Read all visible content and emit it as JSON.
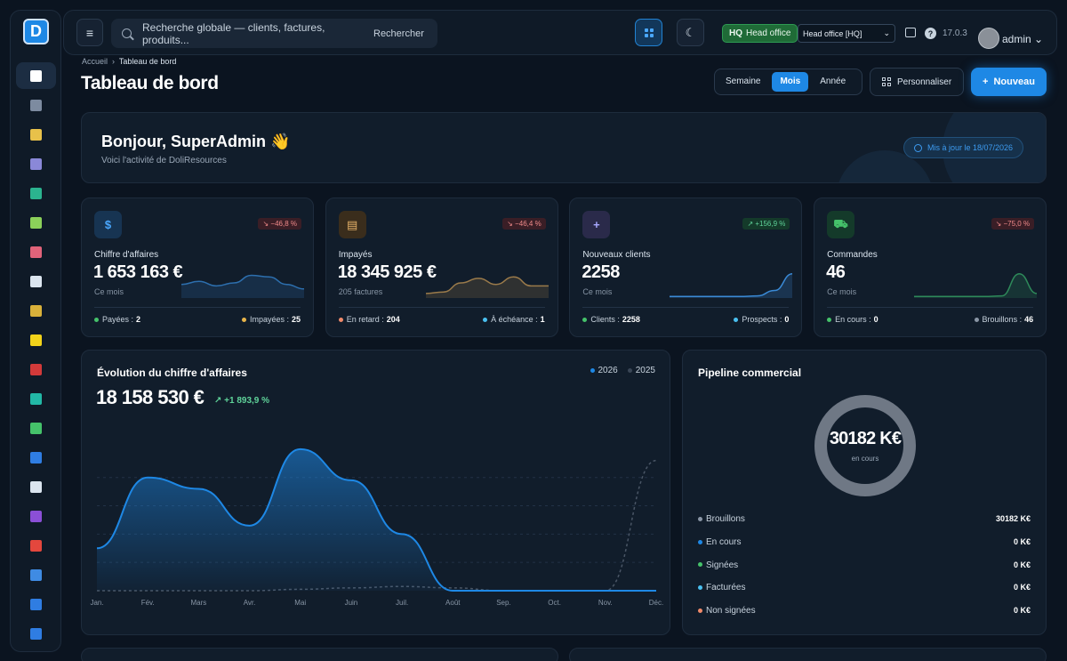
{
  "sidebar": {
    "items": [
      {
        "icon": "home-icon",
        "color": "#ffffff",
        "active": true
      },
      {
        "icon": "building-icon",
        "color": "#7d8ba0"
      },
      {
        "icon": "box-icon",
        "color": "#e8c14a"
      },
      {
        "icon": "flow-icon",
        "color": "#8a88d8"
      },
      {
        "icon": "briefcase-icon",
        "color": "#2bb38f"
      },
      {
        "icon": "invoice-icon",
        "color": "#8bd05a"
      },
      {
        "icon": "calendar-icon",
        "color": "#e0637a"
      },
      {
        "icon": "tools-icon",
        "color": "#dbe5ef"
      },
      {
        "icon": "coin-icon",
        "color": "#d9b13a"
      },
      {
        "icon": "bolt-icon",
        "color": "#f2d31a"
      },
      {
        "icon": "chart-icon",
        "color": "#d23a3a"
      },
      {
        "icon": "shield-icon",
        "color": "#22b8a6"
      },
      {
        "icon": "plus-icon",
        "color": "#45c26a"
      },
      {
        "icon": "triangle-icon",
        "color": "#2f7de2"
      },
      {
        "icon": "bow-icon",
        "color": "#dbe5ef"
      },
      {
        "icon": "screen-icon",
        "color": "#8b4fd6"
      },
      {
        "icon": "list-icon",
        "color": "#e4473d"
      },
      {
        "icon": "chat-icon",
        "color": "#3f8be3"
      },
      {
        "icon": "triangle-icon",
        "color": "#2f7de2"
      },
      {
        "icon": "disc-icon",
        "color": "#2f7de2"
      }
    ]
  },
  "topbar": {
    "menu_icon": "≡",
    "search_placeholder": "Recherche globale — clients, factures, produits...",
    "search_button": "Rechercher",
    "hq_short": "HQ",
    "hq_label": "Head office",
    "entity": "Head office [HQ]",
    "help": "?",
    "version": "17.0.3",
    "user": "admin"
  },
  "breadcrumb": {
    "home": "Accueil",
    "sep": "›",
    "current": "Tableau de bord"
  },
  "page_title": "Tableau de bord",
  "period": {
    "week": "Semaine",
    "month": "Mois",
    "year": "Année"
  },
  "customize_label": "Personnaliser",
  "new_label": "Nouveau",
  "welcome": {
    "hello": "Bonjour, SuperAdmin 👋",
    "sub": "Voici l'activité de DoliResources",
    "updated": "Mis à jour le 18/07/2026"
  },
  "kpis": [
    {
      "label": "Chiffre d'affaires",
      "value": "1 653 163 €",
      "caption": "Ce mois",
      "change": "↘ −46,8 %",
      "trend": "down",
      "icon": "$",
      "icon_name": "dollar-icon",
      "icon_bg": "#173452",
      "icon_color": "#4aa8ff",
      "spark_color": "#2d6fae",
      "spark": [
        0.55,
        0.45,
        0.6,
        0.5,
        0.25,
        0.3,
        0.55,
        0.7
      ],
      "foot_left_label": "Payées :",
      "foot_left_value": "2",
      "foot_left_dot": "#45c26a",
      "foot_right_label": "Impayées :",
      "foot_right_value": "25",
      "foot_right_dot": "#e8b44a"
    },
    {
      "label": "Impayés",
      "value": "18 345 925 €",
      "caption": "205 factures",
      "change": "↘ −46,4 %",
      "trend": "down",
      "icon": "▤",
      "icon_name": "document-icon",
      "icon_bg": "#3a2d1c",
      "icon_color": "#e8b46a",
      "spark_color": "#9a7a4a",
      "spark": [
        0.85,
        0.8,
        0.5,
        0.35,
        0.55,
        0.3,
        0.6,
        0.6
      ],
      "foot_left_label": "En retard :",
      "foot_left_value": "204",
      "foot_left_dot": "#f08a6a",
      "foot_right_label": "À échéance :",
      "foot_right_value": "1",
      "foot_right_dot": "#4ac0f0"
    },
    {
      "label": "Nouveaux clients",
      "value": "2258",
      "caption": "Ce mois",
      "change": "↗ +156,9 %",
      "trend": "up",
      "icon": "+",
      "icon_name": "user-plus-icon",
      "icon_bg": "#2a2a4a",
      "icon_color": "#a8a8ff",
      "spark_color": "#3a8ad6",
      "spark": [
        0.95,
        0.95,
        0.95,
        0.95,
        0.95,
        0.93,
        0.75,
        0.2
      ],
      "foot_left_label": "Clients :",
      "foot_left_value": "2258",
      "foot_left_dot": "#45c26a",
      "foot_right_label": "Prospects :",
      "foot_right_value": "0",
      "foot_right_dot": "#4ac0f0"
    },
    {
      "label": "Commandes",
      "value": "46",
      "caption": "Ce mois",
      "change": "↘ −75,0 %",
      "trend": "down",
      "icon": "⛟",
      "icon_name": "cart-icon",
      "icon_bg": "#143a2a",
      "icon_color": "#45c26a",
      "spark_color": "#2e8a5a",
      "spark": [
        0.95,
        0.95,
        0.95,
        0.95,
        0.95,
        0.93,
        0.2,
        0.85
      ],
      "foot_left_label": "En cours :",
      "foot_left_value": "0",
      "foot_left_dot": "#45c26a",
      "foot_right_label": "Brouillons :",
      "foot_right_value": "46",
      "foot_right_dot": "#8a96a6"
    }
  ],
  "revenue": {
    "title": "Évolution du chiffre d'affaires",
    "total": "18 158 530 €",
    "growth": "↗ +1 893,9 %",
    "legend": [
      {
        "name": "2026",
        "color": "#1e88e5"
      },
      {
        "name": "2025",
        "color": "#3a4656"
      }
    ]
  },
  "chart_data": {
    "type": "area",
    "categories": [
      "Jan.",
      "Fév.",
      "Mars",
      "Avr.",
      "Mai",
      "Juin",
      "Juil.",
      "Août",
      "Sep.",
      "Oct.",
      "Nov.",
      "Déc."
    ],
    "series": [
      {
        "name": "2026",
        "values": [
          1.5,
          4.0,
          3.6,
          2.3,
          5.0,
          3.9,
          2.0,
          0.0,
          0.0,
          0.0,
          0.0,
          0.0
        ]
      },
      {
        "name": "2025",
        "values": [
          0.0,
          0.0,
          0.0,
          0.0,
          0.05,
          0.1,
          0.15,
          0.1,
          0.0,
          0.0,
          0.0,
          4.6
        ]
      }
    ],
    "ylim": [
      0,
      5.5
    ],
    "grid": true
  },
  "pipeline": {
    "title": "Pipeline commercial",
    "center_value": "30182 K€",
    "center_label": "en cours",
    "rows": [
      {
        "label": "Brouillons",
        "value": "30182 K€",
        "color": "#8a96a6"
      },
      {
        "label": "En cours",
        "value": "0 K€",
        "color": "#1e88e5"
      },
      {
        "label": "Signées",
        "value": "0 K€",
        "color": "#45c26a"
      },
      {
        "label": "Facturées",
        "value": "0 K€",
        "color": "#4ac0f0"
      },
      {
        "label": "Non signées",
        "value": "0 K€",
        "color": "#f08a6a"
      }
    ]
  }
}
